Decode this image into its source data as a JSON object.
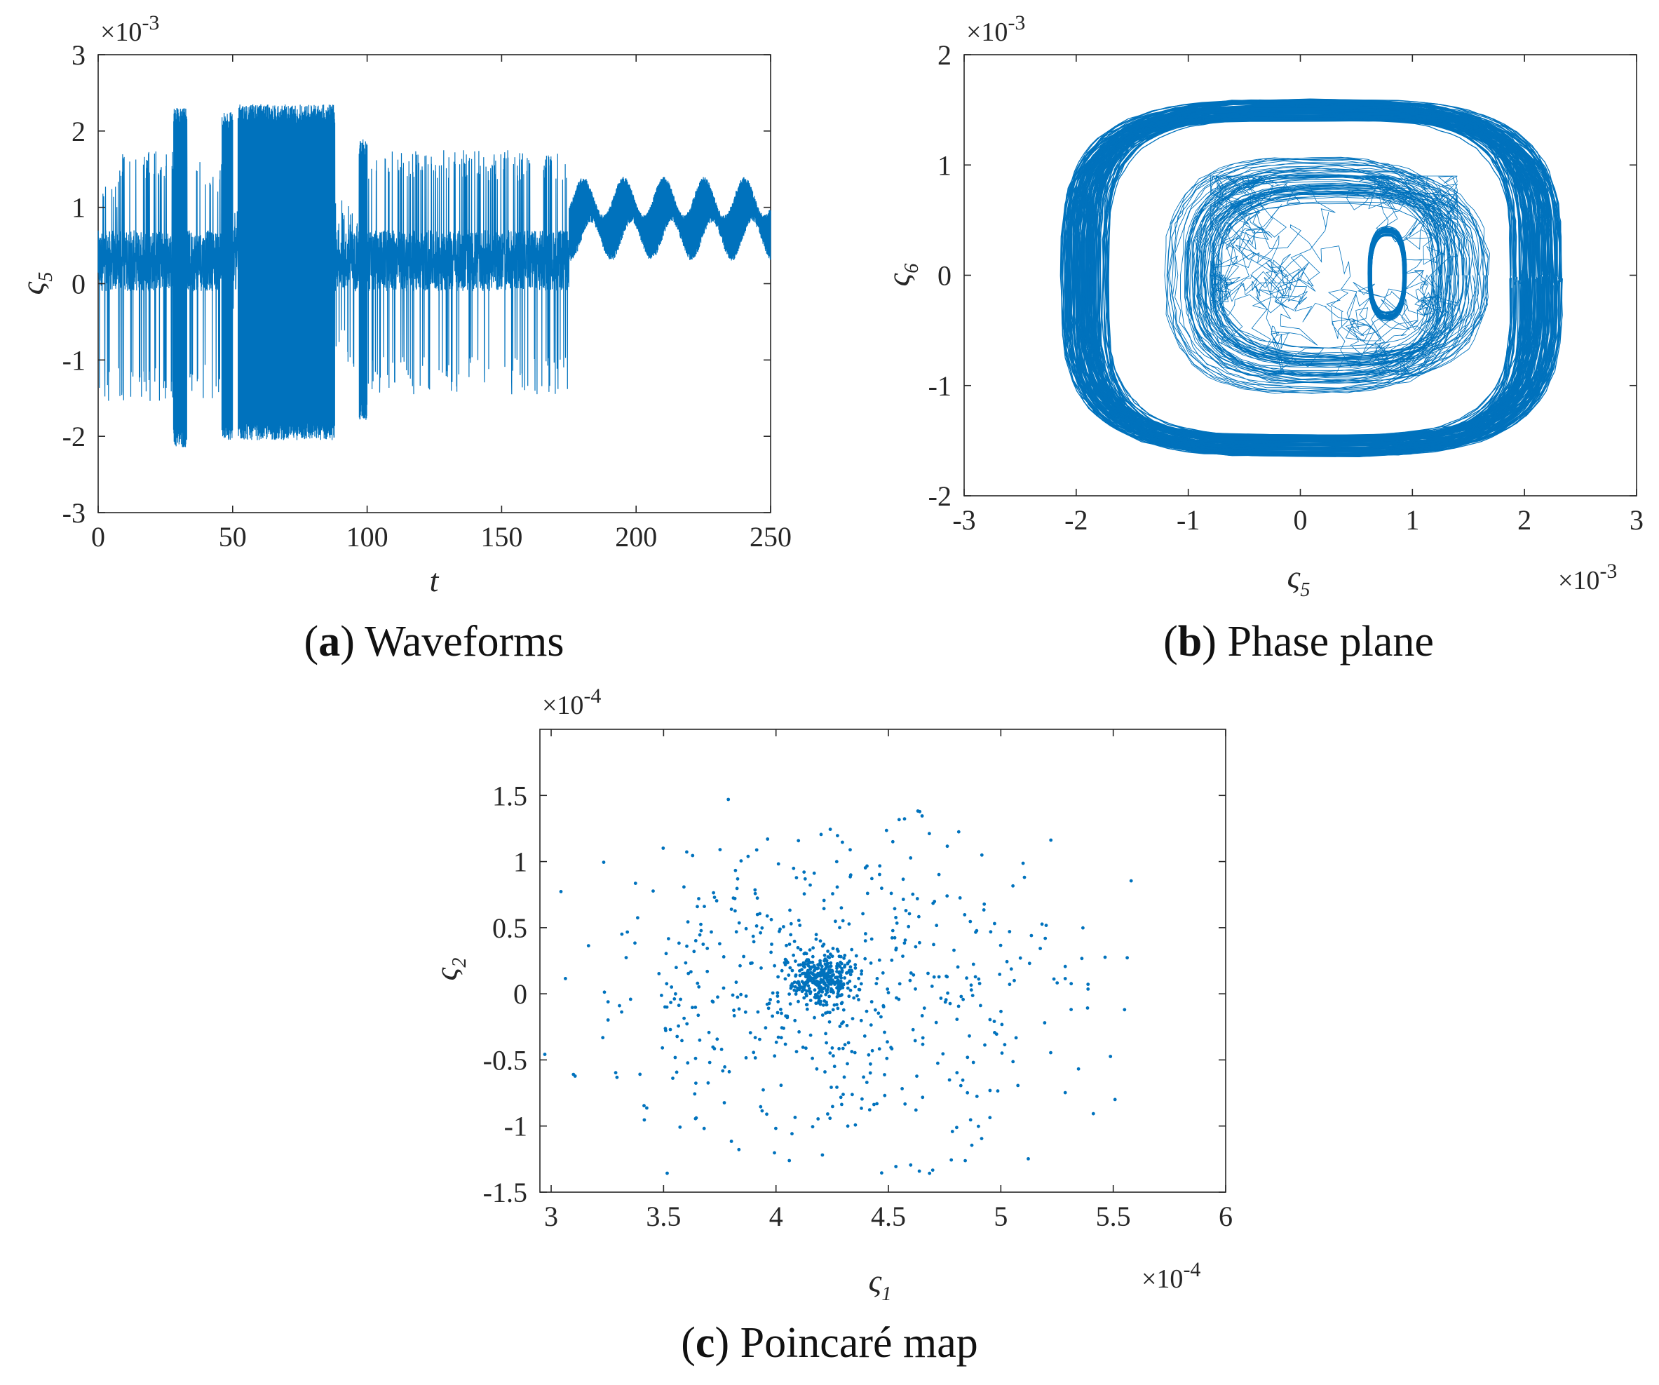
{
  "figure": {
    "captions": {
      "a": {
        "letter": "a",
        "text": " Waveforms",
        "open": "(",
        "close": ")"
      },
      "b": {
        "letter": "b",
        "text": " Phase plane",
        "open": "(",
        "close": ")"
      },
      "c": {
        "letter": "c",
        "text": " Poincaré map",
        "open": "(",
        "close": ")"
      }
    },
    "line_color": "#0072BD"
  },
  "chart_data": [
    {
      "id": "a",
      "type": "line",
      "title": "Waveforms",
      "xlabel": "t",
      "ylabel": {
        "base": "ς",
        "sub": "5"
      },
      "y_multiplier": "×10^-3",
      "xlim": [
        0,
        250
      ],
      "ylim": [
        -3,
        3
      ],
      "xticks": [
        "0",
        "50",
        "100",
        "150",
        "200",
        "250"
      ],
      "yticks": [
        "-3",
        "-2",
        "-1",
        "0",
        "1",
        "2",
        "3"
      ],
      "segments": [
        {
          "t": [
            0,
            8
          ],
          "min": -1.6,
          "max": 1.4,
          "kind": "sparse"
        },
        {
          "t": [
            8,
            28
          ],
          "min": -1.55,
          "max": 1.75,
          "kind": "sparse"
        },
        {
          "t": [
            28,
            33
          ],
          "min": -2.15,
          "max": 2.3,
          "kind": "dense"
        },
        {
          "t": [
            33,
            46
          ],
          "min": -1.5,
          "max": 1.6,
          "kind": "sparse"
        },
        {
          "t": [
            46,
            50
          ],
          "min": -2.05,
          "max": 2.25,
          "kind": "dense"
        },
        {
          "t": [
            50,
            52
          ],
          "min": -0.5,
          "max": 1.0,
          "kind": "sparse"
        },
        {
          "t": [
            52,
            88
          ],
          "min": -2.05,
          "max": 2.35,
          "kind": "dense"
        },
        {
          "t": [
            88,
            97
          ],
          "min": -1.1,
          "max": 1.1,
          "kind": "sparse"
        },
        {
          "t": [
            97,
            100
          ],
          "min": -1.8,
          "max": 1.9,
          "kind": "dense"
        },
        {
          "t": [
            100,
            175
          ],
          "min": -1.45,
          "max": 1.75,
          "kind": "sparse"
        },
        {
          "t": [
            175,
            250
          ],
          "min": 0.3,
          "max": 1.4,
          "kind": "envelope"
        }
      ]
    },
    {
      "id": "b",
      "type": "line",
      "title": "Phase plane",
      "xlabel": {
        "base": "ς",
        "sub": "5"
      },
      "ylabel": {
        "base": "ς",
        "sub": "6"
      },
      "x_multiplier": "×10^-3",
      "y_multiplier": "×10^-3",
      "xlim": [
        -3,
        3
      ],
      "ylim": [
        -2,
        2
      ],
      "xticks": [
        "-3",
        "-2",
        "-1",
        "0",
        "1",
        "2",
        "3"
      ],
      "yticks": [
        "-2",
        "-1",
        "0",
        "1",
        "2"
      ],
      "outer_orbit": {
        "x_range": [
          -2.15,
          2.35
        ],
        "y_range": [
          -1.65,
          1.6
        ]
      },
      "inner_orbit": {
        "x_range": [
          -1.05,
          1.7
        ],
        "y_range": [
          -1.1,
          1.1
        ]
      },
      "small_loop": {
        "x_range": [
          0.6,
          0.95
        ],
        "y_range": [
          -0.42,
          0.45
        ]
      }
    },
    {
      "id": "c",
      "type": "scatter",
      "title": "Poincaré map",
      "xlabel": {
        "base": "ς",
        "sub": "1"
      },
      "ylabel": {
        "base": "ς",
        "sub": "2"
      },
      "x_multiplier": "×10^-4",
      "y_multiplier": "×10^-4",
      "xlim": [
        2.95,
        6
      ],
      "ylim": [
        -1.5,
        2
      ],
      "xticks": [
        "3",
        "3.5",
        "4",
        "4.5",
        "5",
        "5.5",
        "6"
      ],
      "yticks": [
        "-1.5",
        "-1",
        "-0.5",
        "0",
        "0.5",
        "1",
        "1.5"
      ],
      "cluster_center": [
        4.2,
        0.1
      ],
      "cluster_spread": [
        0.07,
        0.1
      ],
      "cloud_center": [
        4.25,
        0.05
      ],
      "cloud_spread": [
        0.55,
        0.6
      ],
      "point_count": 900
    }
  ]
}
